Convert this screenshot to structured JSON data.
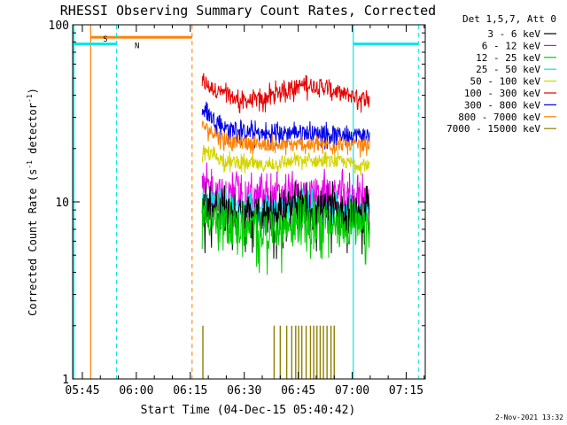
{
  "chart_data": {
    "type": "line",
    "title": "RHESSI Observing Summary Count Rates, Corrected",
    "xlabel": "Start Time (04-Dec-15 05:40:42)",
    "ylabel_main": "Corrected Count Rate (s",
    "ylabel_sup1": "-1",
    "ylabel_mid": " detector",
    "ylabel_sup2": "-1",
    "ylabel_end": ")",
    "y_scale": "log",
    "ylim": [
      1,
      100
    ],
    "xlim_minutes": [
      -2.7,
      95.3
    ],
    "x_ticks": [
      {
        "label": "05:45",
        "minute": 0
      },
      {
        "label": "06:00",
        "minute": 15
      },
      {
        "label": "06:15",
        "minute": 30
      },
      {
        "label": "06:30",
        "minute": 45
      },
      {
        "label": "06:45",
        "minute": 60
      },
      {
        "label": "07:00",
        "minute": 75
      },
      {
        "label": "07:15",
        "minute": 90
      }
    ],
    "y_ticks": [
      {
        "label": "1",
        "value": 1
      },
      {
        "label": "10",
        "value": 10
      },
      {
        "label": "100",
        "value": 100
      }
    ],
    "legend_title": "Det 1,5,7, Att 0",
    "legend_position": "right",
    "series": [
      {
        "name": "3 - 6 keV",
        "color": "#000000"
      },
      {
        "name": "6 - 12 keV",
        "color": "#e600e6"
      },
      {
        "name": "12 - 25 keV",
        "color": "#00cc00"
      },
      {
        "name": "25 - 50 keV",
        "color": "#00e6e6"
      },
      {
        "name": "50 - 100 keV",
        "color": "#d4d400"
      },
      {
        "name": "100 - 300 keV",
        "color": "#e60000"
      },
      {
        "name": "300 - 800 keV",
        "color": "#0000e6"
      },
      {
        "name": "800 - 7000 keV",
        "color": "#ff8000"
      },
      {
        "name": "7000 - 15000 keV",
        "color": "#8c7f00"
      }
    ],
    "data_window_minutes": [
      33.3,
      79.8
    ],
    "series_levels": [
      {
        "series": "100 - 300 keV",
        "profile": [
          [
            33.3,
            47
          ],
          [
            38,
            42
          ],
          [
            44,
            37
          ],
          [
            50,
            38
          ],
          [
            56,
            43
          ],
          [
            62,
            46
          ],
          [
            66,
            45
          ],
          [
            72,
            41
          ],
          [
            79.8,
            38
          ]
        ]
      },
      {
        "series": "300 - 800 keV",
        "profile": [
          [
            33.3,
            33
          ],
          [
            40,
            26
          ],
          [
            50,
            24
          ],
          [
            60,
            25
          ],
          [
            70,
            24
          ],
          [
            79.8,
            24
          ]
        ]
      },
      {
        "series": "800 - 7000 keV",
        "profile": [
          [
            33.3,
            27
          ],
          [
            40,
            22
          ],
          [
            50,
            21
          ],
          [
            60,
            21
          ],
          [
            70,
            21
          ],
          [
            79.8,
            21
          ]
        ]
      },
      {
        "series": "50 - 100 keV",
        "profile": [
          [
            33.3,
            19
          ],
          [
            40,
            17
          ],
          [
            50,
            16
          ],
          [
            60,
            17
          ],
          [
            70,
            17
          ],
          [
            79.8,
            16
          ]
        ]
      },
      {
        "series": "6 - 12 keV",
        "profile": [
          [
            33.3,
            12
          ],
          [
            40,
            11
          ],
          [
            50,
            10.5
          ],
          [
            60,
            11
          ],
          [
            70,
            11
          ],
          [
            79.8,
            10.5
          ]
        ]
      },
      {
        "series": "25 - 50 keV",
        "profile": [
          [
            33.3,
            10.5
          ],
          [
            40,
            9.5
          ],
          [
            50,
            9
          ],
          [
            60,
            9.5
          ],
          [
            70,
            9.5
          ],
          [
            79.8,
            9
          ]
        ]
      },
      {
        "series": "3 - 6 keV",
        "profile": [
          [
            33.3,
            9.5
          ],
          [
            40,
            8.5
          ],
          [
            50,
            8.5
          ],
          [
            60,
            9
          ],
          [
            70,
            9
          ],
          [
            79.8,
            8.5
          ]
        ]
      },
      {
        "series": "12 - 25 keV",
        "profile": [
          [
            33.3,
            8.5
          ],
          [
            40,
            7.5
          ],
          [
            50,
            7
          ],
          [
            60,
            7.5
          ],
          [
            70,
            7.5
          ],
          [
            79.8,
            7
          ]
        ]
      }
    ],
    "flag_intervals": [
      {
        "label": "S",
        "color": "#ff8000",
        "start_minute": 2.3,
        "end_minute": 30.5,
        "level": 85,
        "solid_marker": 2.3,
        "dashed_marker": 30.5
      },
      {
        "label": "N",
        "color": "#00e6e6",
        "start_minute": -2.7,
        "end_minute": 9.5,
        "level": 78,
        "solid_marker": null,
        "dashed_marker": 9.5
      },
      {
        "label": "",
        "color": "#00e6e6",
        "start_minute": 75.3,
        "end_minute": 93.4,
        "level": 78,
        "solid_marker": 75.3,
        "dashed_marker": 93.4
      }
    ],
    "left_edge_marker": {
      "minute": -2.7,
      "color": "#00e6e6"
    },
    "spike_series": "7000 - 15000 keV",
    "spike_level": 2,
    "spike_minutes": [
      33.5,
      53.3,
      55.0,
      56.8,
      58.2,
      59.3,
      60.1,
      61.0,
      62.2,
      63.4,
      64.3,
      65.2,
      66.1,
      67.0,
      68.0,
      69.1,
      70.0
    ]
  },
  "footer": {
    "date_stamp": "2-Nov-2021 13:32"
  }
}
